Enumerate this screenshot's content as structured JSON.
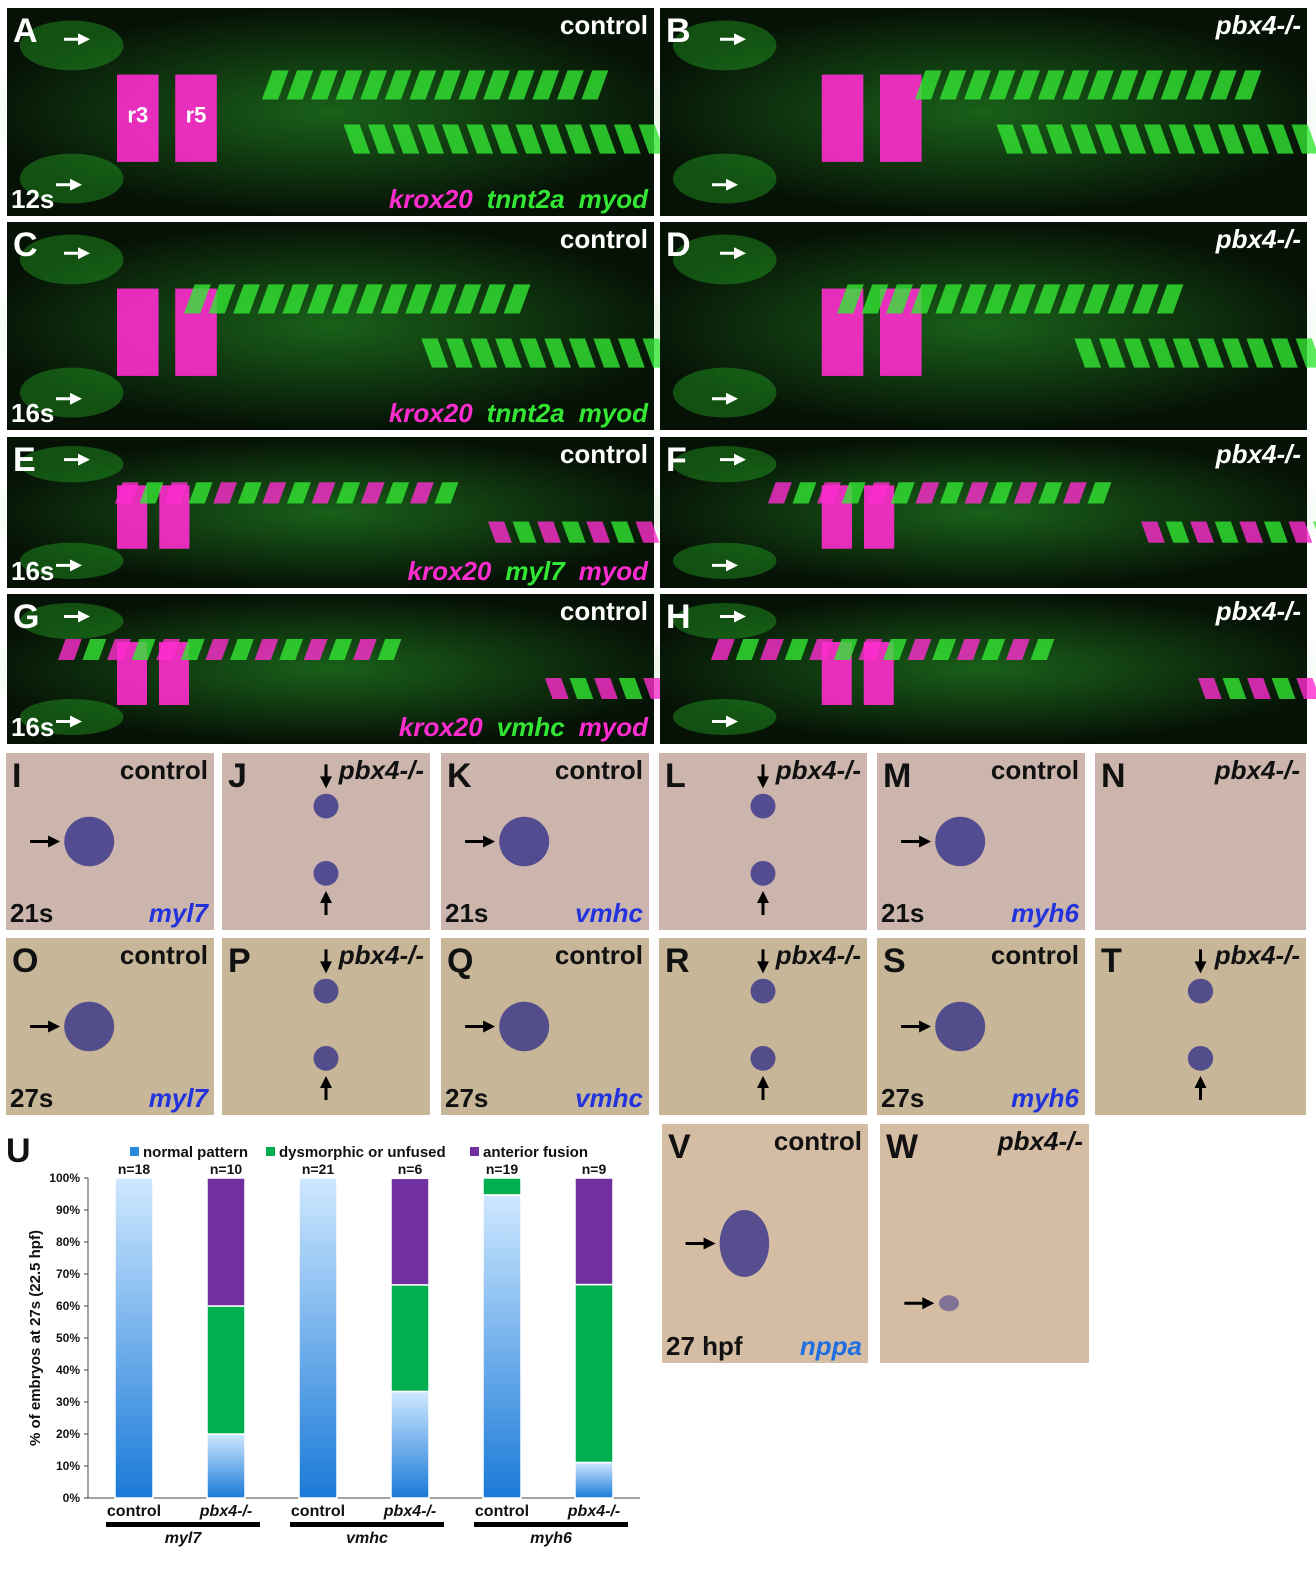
{
  "panels": [
    {
      "letter": "A",
      "condition": "control",
      "stage": "12s",
      "markers": [
        {
          "name": "krox20",
          "color": "#ff2ccf"
        },
        {
          "name": "tnnt2a",
          "color": "#33e633"
        },
        {
          "name": "myod",
          "color": "#33e633"
        }
      ],
      "labels": [
        "r3",
        "r5"
      ]
    },
    {
      "letter": "B",
      "condition": "pbx4-/-"
    },
    {
      "letter": "C",
      "condition": "control",
      "stage": "16s",
      "markers": [
        {
          "name": "krox20",
          "color": "#ff2ccf"
        },
        {
          "name": "tnnt2a",
          "color": "#33e633"
        },
        {
          "name": "myod",
          "color": "#33e633"
        }
      ]
    },
    {
      "letter": "D",
      "condition": "pbx4-/-"
    },
    {
      "letter": "E",
      "condition": "control",
      "stage": "16s",
      "markers": [
        {
          "name": "krox20",
          "color": "#ff2ccf"
        },
        {
          "name": "myl7",
          "color": "#33e633"
        },
        {
          "name": "myod",
          "color": "#ff2ccf"
        }
      ]
    },
    {
      "letter": "F",
      "condition": "pbx4-/-"
    },
    {
      "letter": "G",
      "condition": "control",
      "stage": "16s",
      "markers": [
        {
          "name": "krox20",
          "color": "#ff2ccf"
        },
        {
          "name": "vmhc",
          "color": "#33e633"
        },
        {
          "name": "myod",
          "color": "#ff2ccf"
        }
      ]
    },
    {
      "letter": "H",
      "condition": "pbx4-/-"
    },
    {
      "letter": "I",
      "condition": "control",
      "stage": "21s",
      "markers": [
        {
          "name": "myl7",
          "color": "#2233dd"
        }
      ]
    },
    {
      "letter": "J",
      "condition": "pbx4-/-"
    },
    {
      "letter": "K",
      "condition": "control",
      "stage": "21s",
      "markers": [
        {
          "name": "vmhc",
          "color": "#2233dd"
        }
      ]
    },
    {
      "letter": "L",
      "condition": "pbx4-/-"
    },
    {
      "letter": "M",
      "condition": "control",
      "stage": "21s",
      "markers": [
        {
          "name": "myh6",
          "color": "#2233dd"
        }
      ]
    },
    {
      "letter": "N",
      "condition": "pbx4-/-"
    },
    {
      "letter": "O",
      "condition": "control",
      "stage": "27s",
      "markers": [
        {
          "name": "myl7",
          "color": "#2233dd"
        }
      ]
    },
    {
      "letter": "P",
      "condition": "pbx4-/-"
    },
    {
      "letter": "Q",
      "condition": "control",
      "stage": "27s",
      "markers": [
        {
          "name": "vmhc",
          "color": "#2233dd"
        }
      ]
    },
    {
      "letter": "R",
      "condition": "pbx4-/-"
    },
    {
      "letter": "S",
      "condition": "control",
      "stage": "27s",
      "markers": [
        {
          "name": "myh6",
          "color": "#2233dd"
        }
      ]
    },
    {
      "letter": "T",
      "condition": "pbx4-/-"
    },
    {
      "letter": "V",
      "condition": "control",
      "stage": "27 hpf",
      "markers": [
        {
          "name": "nppa",
          "color": "#1f6fe0"
        }
      ]
    },
    {
      "letter": "W",
      "condition": "pbx4-/-"
    }
  ],
  "chart_data": {
    "type": "stacked_bar",
    "letter": "U",
    "y_label": "% of embryos at 27s (22.5 hpf)",
    "categories": [
      "control",
      "pbx4-/-",
      "control",
      "pbx4-/-",
      "control",
      "pbx4-/-"
    ],
    "group_labels": [
      "myl7",
      "vmhc",
      "myh6"
    ],
    "n_labels": [
      "n=18",
      "n=10",
      "n=21",
      "n=6",
      "n=19",
      "n=9"
    ],
    "series": [
      {
        "name": "normal pattern",
        "color": "#2a8ae0",
        "values": [
          100,
          20,
          100,
          33.3,
          94.7,
          11.1
        ]
      },
      {
        "name": "dysmorphic or unfused",
        "color": "#00b050",
        "values": [
          0,
          40,
          0,
          33.3,
          5.3,
          55.6
        ]
      },
      {
        "name": "anterior fusion",
        "color": "#7030a0",
        "values": [
          0,
          40,
          0,
          33.3,
          0,
          33.3
        ]
      }
    ],
    "ylim": [
      0,
      100
    ],
    "yticks": [
      {
        "value": 0,
        "label": "0%"
      },
      {
        "value": 10,
        "label": "10%"
      },
      {
        "value": 20,
        "label": "20%"
      },
      {
        "value": 30,
        "label": "30%"
      },
      {
        "value": 40,
        "label": "40%"
      },
      {
        "value": 50,
        "label": "50%"
      },
      {
        "value": 60,
        "label": "60%"
      },
      {
        "value": 70,
        "label": "70%"
      },
      {
        "value": 80,
        "label": "80%"
      },
      {
        "value": 90,
        "label": "90%"
      },
      {
        "value": 100,
        "label": "100%"
      }
    ]
  }
}
